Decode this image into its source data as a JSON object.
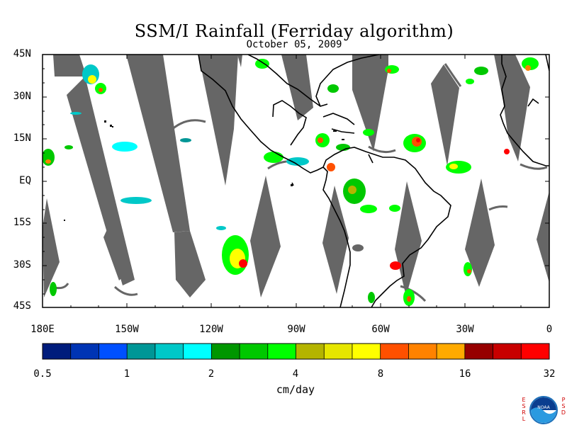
{
  "title": "SSM/I Rainfall (Ferriday algorithm)",
  "subtitle": "October 05, 2009",
  "lat_labels": [
    "45N",
    "30N",
    "15N",
    "EQ",
    "15S",
    "30S",
    "45S"
  ],
  "lon_labels": [
    "180E",
    "150W",
    "120W",
    "90W",
    "60W",
    "30W",
    "0"
  ],
  "colorbar": {
    "units": "cm/day",
    "ticks": [
      "0.5",
      "1",
      "2",
      "4",
      "8",
      "16",
      "32"
    ],
    "colors": [
      "#001c7c",
      "#0034b4",
      "#0050ff",
      "#009696",
      "#00c8c8",
      "#00ffff",
      "#009600",
      "#00c800",
      "#00ff00",
      "#b4b400",
      "#e6e600",
      "#ffff00",
      "#ff5000",
      "#ff8200",
      "#ffaa00",
      "#960000",
      "#c80000",
      "#ff0000"
    ]
  },
  "map": {
    "lon_range": [
      -180,
      0
    ],
    "lat_range": [
      -45,
      45
    ],
    "no_data_color": "#666666"
  },
  "logo": {
    "left_letters": "ESRL",
    "right_letters": "PSD",
    "center_text": "NOAA"
  }
}
